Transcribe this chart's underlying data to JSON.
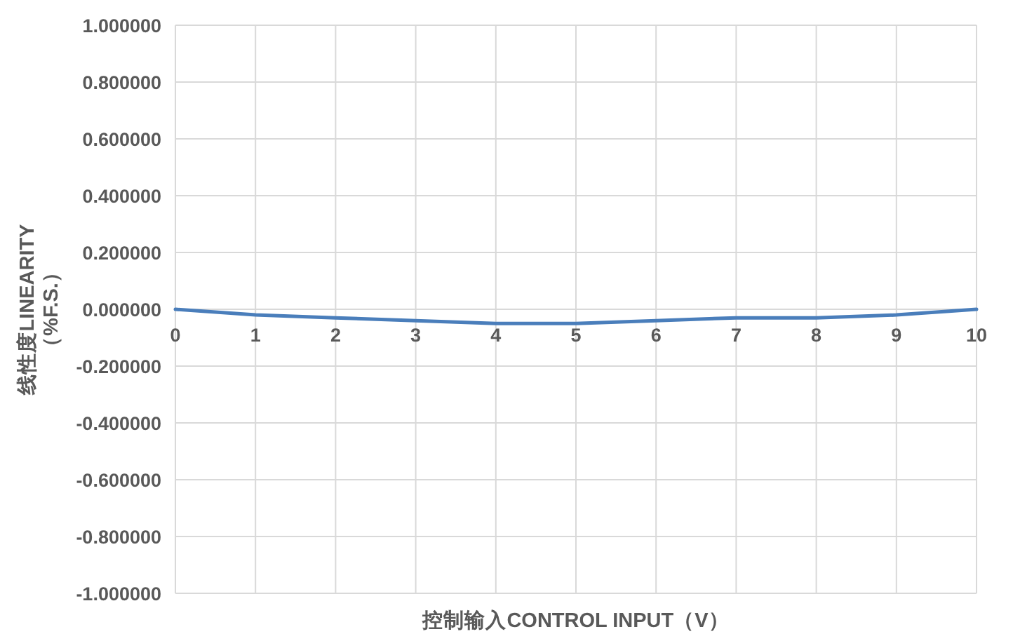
{
  "chart_data": {
    "type": "line",
    "xlabel": "控制输入CONTROL INPUT（V）",
    "ylabel": "线性度LINEARITY\n（%F.S.）",
    "x": [
      0,
      1,
      2,
      3,
      4,
      5,
      6,
      7,
      8,
      9,
      10
    ],
    "series": [
      {
        "color": "#4a7ebb",
        "values": [
          0,
          -0.02,
          -0.03,
          -0.04,
          -0.05,
          -0.05,
          -0.04,
          -0.03,
          -0.03,
          -0.02,
          0
        ]
      }
    ],
    "xlim": [
      0,
      10
    ],
    "xticks": [
      0,
      1,
      2,
      3,
      4,
      5,
      6,
      7,
      8,
      9,
      10
    ],
    "ylim": [
      -1,
      1
    ],
    "yticks": [
      {
        "value": -1,
        "label": "-1.000000"
      },
      {
        "value": -0.8,
        "label": "-0.800000"
      },
      {
        "value": -0.6,
        "label": "-0.600000"
      },
      {
        "value": -0.4,
        "label": "-0.400000"
      },
      {
        "value": -0.2,
        "label": "-0.200000"
      },
      {
        "value": 0,
        "label": "0.000000"
      },
      {
        "value": 0.2,
        "label": "0.200000"
      },
      {
        "value": 0.4,
        "label": "0.400000"
      },
      {
        "value": 0.6,
        "label": "0.600000"
      },
      {
        "value": 0.8,
        "label": "0.800000"
      },
      {
        "value": 1,
        "label": "1.000000"
      }
    ],
    "grid": true,
    "marker": "none",
    "line_style": "solid"
  }
}
